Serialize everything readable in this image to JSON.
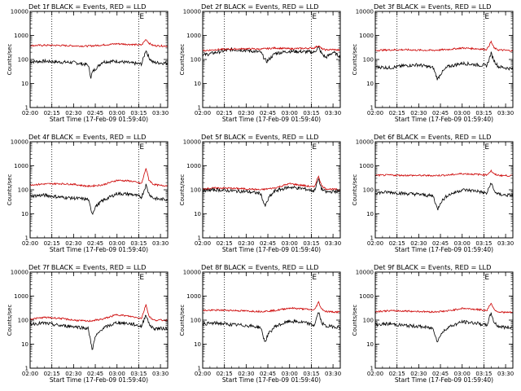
{
  "colors": {
    "events": "#000000",
    "lld": "#cc0000",
    "axis": "#000000"
  },
  "shared": {
    "xlabel": "Start Time (17-Feb-09 01:59:40)",
    "ylabel": "Counts/sec",
    "x_ticks": [
      "02:00",
      "02:15",
      "02:30",
      "02:45",
      "03:00",
      "03:15",
      "03:30"
    ],
    "y_ticks": [
      "1",
      "10",
      "100",
      "1000",
      "10000"
    ],
    "dotted_vlines": [
      "02:15",
      "03:15"
    ],
    "marker_label": "E"
  },
  "chart_data": [
    {
      "type": "line",
      "title": "Det 1f BLACK = Events, RED = LLD",
      "xlim": [
        "02:00",
        "03:35"
      ],
      "ylim": [
        1,
        10000
      ],
      "yscale": "log",
      "series": [
        {
          "name": "Events",
          "color": "#000000",
          "x": [
            "02:00",
            "02:10",
            "02:20",
            "02:30",
            "02:40",
            "02:42",
            "02:43",
            "02:45",
            "02:50",
            "03:00",
            "03:10",
            "03:17",
            "03:20",
            "03:22",
            "03:25",
            "03:30",
            "03:35"
          ],
          "y": [
            80,
            85,
            78,
            75,
            60,
            18,
            30,
            40,
            80,
            85,
            70,
            65,
            250,
            120,
            75,
            72,
            70
          ]
        },
        {
          "name": "LLD",
          "color": "#cc0000",
          "x": [
            "02:00",
            "02:10",
            "02:20",
            "02:30",
            "02:40",
            "02:50",
            "03:00",
            "03:10",
            "03:17",
            "03:20",
            "03:22",
            "03:25",
            "03:30",
            "03:35"
          ],
          "y": [
            380,
            390,
            385,
            370,
            360,
            400,
            450,
            420,
            400,
            700,
            480,
            380,
            370,
            360
          ]
        }
      ]
    },
    {
      "type": "line",
      "title": "Det 2f BLACK = Events, RED = LLD",
      "xlim": [
        "02:00",
        "03:35"
      ],
      "ylim": [
        1,
        10000
      ],
      "yscale": "log",
      "series": [
        {
          "name": "Events",
          "color": "#000000",
          "x": [
            "02:00",
            "02:10",
            "02:20",
            "02:30",
            "02:40",
            "02:44",
            "02:47",
            "02:50",
            "03:00",
            "03:10",
            "03:17",
            "03:20",
            "03:22",
            "03:25",
            "03:30",
            "03:35"
          ],
          "y": [
            150,
            200,
            260,
            240,
            200,
            80,
            120,
            180,
            220,
            210,
            200,
            320,
            180,
            120,
            200,
            130
          ]
        },
        {
          "name": "LLD",
          "color": "#cc0000",
          "x": [
            "02:00",
            "02:10",
            "02:20",
            "02:30",
            "02:40",
            "02:50",
            "03:00",
            "03:10",
            "03:17",
            "03:20",
            "03:22",
            "03:25",
            "03:30",
            "03:35"
          ],
          "y": [
            230,
            260,
            270,
            280,
            270,
            300,
            280,
            290,
            300,
            380,
            280,
            250,
            260,
            240
          ]
        }
      ]
    },
    {
      "type": "line",
      "title": "Det 3f BLACK = Events, RED = LLD",
      "xlim": [
        "02:00",
        "03:35"
      ],
      "ylim": [
        1,
        10000
      ],
      "yscale": "log",
      "series": [
        {
          "name": "Events",
          "color": "#000000",
          "x": [
            "02:00",
            "02:10",
            "02:20",
            "02:30",
            "02:40",
            "02:43",
            "02:45",
            "02:50",
            "03:00",
            "03:10",
            "03:17",
            "03:20",
            "03:22",
            "03:25",
            "03:30",
            "03:35"
          ],
          "y": [
            50,
            45,
            55,
            60,
            45,
            15,
            25,
            50,
            70,
            60,
            55,
            180,
            90,
            50,
            45,
            40
          ]
        },
        {
          "name": "LLD",
          "color": "#cc0000",
          "x": [
            "02:00",
            "02:10",
            "02:20",
            "02:30",
            "02:40",
            "02:50",
            "03:00",
            "03:10",
            "03:17",
            "03:20",
            "03:22",
            "03:25",
            "03:30",
            "03:35"
          ],
          "y": [
            240,
            250,
            255,
            245,
            240,
            260,
            300,
            280,
            260,
            550,
            300,
            250,
            240,
            230
          ]
        }
      ]
    },
    {
      "type": "line",
      "title": "Det 4f BLACK = Events, RED = LLD",
      "xlim": [
        "02:00",
        "03:35"
      ],
      "ylim": [
        1,
        10000
      ],
      "yscale": "log",
      "series": [
        {
          "name": "Events",
          "color": "#000000",
          "x": [
            "02:00",
            "02:10",
            "02:20",
            "02:30",
            "02:40",
            "02:43",
            "02:45",
            "02:50",
            "03:00",
            "03:10",
            "03:17",
            "03:20",
            "03:22",
            "03:25",
            "03:30",
            "03:35"
          ],
          "y": [
            55,
            60,
            50,
            45,
            40,
            10,
            20,
            35,
            70,
            65,
            50,
            160,
            70,
            45,
            40,
            40
          ]
        },
        {
          "name": "LLD",
          "color": "#cc0000",
          "x": [
            "02:00",
            "02:10",
            "02:20",
            "02:30",
            "02:40",
            "02:50",
            "03:00",
            "03:10",
            "03:17",
            "03:20",
            "03:22",
            "03:25",
            "03:30",
            "03:35"
          ],
          "y": [
            160,
            175,
            180,
            170,
            140,
            160,
            250,
            230,
            180,
            800,
            260,
            170,
            150,
            150
          ]
        }
      ]
    },
    {
      "type": "line",
      "title": "Det 5f BLACK = Events, RED = LLD",
      "xlim": [
        "02:00",
        "03:35"
      ],
      "ylim": [
        1,
        10000
      ],
      "yscale": "log",
      "series": [
        {
          "name": "Events",
          "color": "#000000",
          "x": [
            "02:00",
            "02:10",
            "02:20",
            "02:30",
            "02:40",
            "02:43",
            "02:46",
            "02:50",
            "03:00",
            "03:10",
            "03:17",
            "03:20",
            "03:22",
            "03:25",
            "03:30",
            "03:35"
          ],
          "y": [
            95,
            100,
            90,
            85,
            70,
            20,
            50,
            90,
            130,
            110,
            90,
            280,
            110,
            80,
            85,
            85
          ]
        },
        {
          "name": "LLD",
          "color": "#cc0000",
          "x": [
            "02:00",
            "02:10",
            "02:20",
            "02:30",
            "02:40",
            "02:50",
            "03:00",
            "03:10",
            "03:17",
            "03:20",
            "03:22",
            "03:25",
            "03:30",
            "03:35"
          ],
          "y": [
            110,
            120,
            115,
            110,
            100,
            120,
            180,
            150,
            130,
            380,
            150,
            110,
            105,
            100
          ]
        }
      ]
    },
    {
      "type": "line",
      "title": "Det 6f BLACK = Events, RED = LLD",
      "xlim": [
        "02:00",
        "03:35"
      ],
      "ylim": [
        1,
        10000
      ],
      "yscale": "log",
      "series": [
        {
          "name": "Events",
          "color": "#000000",
          "x": [
            "02:00",
            "02:10",
            "02:20",
            "02:30",
            "02:40",
            "02:43",
            "02:45",
            "02:50",
            "03:00",
            "03:10",
            "03:17",
            "03:20",
            "03:22",
            "03:25",
            "03:30",
            "03:35"
          ],
          "y": [
            75,
            80,
            70,
            65,
            55,
            15,
            30,
            60,
            100,
            90,
            70,
            200,
            90,
            65,
            60,
            60
          ]
        },
        {
          "name": "LLD",
          "color": "#cc0000",
          "x": [
            "02:00",
            "02:10",
            "02:20",
            "02:30",
            "02:40",
            "02:50",
            "03:00",
            "03:10",
            "03:17",
            "03:20",
            "03:22",
            "03:25",
            "03:30",
            "03:35"
          ],
          "y": [
            400,
            410,
            400,
            395,
            390,
            410,
            470,
            440,
            420,
            620,
            450,
            400,
            390,
            380
          ]
        }
      ]
    },
    {
      "type": "line",
      "title": "Det 7f BLACK = Events, RED = LLD",
      "xlim": [
        "02:00",
        "03:35"
      ],
      "ylim": [
        1,
        10000
      ],
      "yscale": "log",
      "series": [
        {
          "name": "Events",
          "color": "#000000",
          "x": [
            "02:00",
            "02:10",
            "02:20",
            "02:30",
            "02:40",
            "02:43",
            "02:45",
            "02:50",
            "03:00",
            "03:10",
            "03:17",
            "03:20",
            "03:22",
            "03:25",
            "03:30",
            "03:35"
          ],
          "y": [
            70,
            75,
            60,
            55,
            45,
            6,
            20,
            45,
            80,
            70,
            55,
            180,
            70,
            45,
            45,
            45
          ]
        },
        {
          "name": "LLD",
          "color": "#cc0000",
          "x": [
            "02:00",
            "02:10",
            "02:20",
            "02:30",
            "02:40",
            "02:50",
            "03:00",
            "03:10",
            "03:17",
            "03:20",
            "03:22",
            "03:25",
            "03:30",
            "03:35"
          ],
          "y": [
            110,
            130,
            120,
            100,
            90,
            110,
            170,
            140,
            120,
            450,
            150,
            100,
            100,
            100
          ]
        }
      ]
    },
    {
      "type": "line",
      "title": "Det 8f BLACK = Events, RED = LLD",
      "xlim": [
        "02:00",
        "03:35"
      ],
      "ylim": [
        1,
        10000
      ],
      "yscale": "log",
      "series": [
        {
          "name": "Events",
          "color": "#000000",
          "x": [
            "02:00",
            "02:10",
            "02:20",
            "02:30",
            "02:40",
            "02:43",
            "02:45",
            "02:50",
            "03:00",
            "03:10",
            "03:17",
            "03:20",
            "03:22",
            "03:25",
            "03:30",
            "03:35"
          ],
          "y": [
            70,
            75,
            65,
            60,
            50,
            12,
            25,
            55,
            90,
            80,
            60,
            220,
            80,
            55,
            55,
            50
          ]
        },
        {
          "name": "LLD",
          "color": "#cc0000",
          "x": [
            "02:00",
            "02:10",
            "02:20",
            "02:30",
            "02:40",
            "02:50",
            "03:00",
            "03:10",
            "03:17",
            "03:20",
            "03:22",
            "03:25",
            "03:30",
            "03:35"
          ],
          "y": [
            250,
            260,
            255,
            240,
            230,
            250,
            320,
            290,
            260,
            560,
            300,
            230,
            220,
            220
          ]
        }
      ]
    },
    {
      "type": "line",
      "title": "Det 9f BLACK = Events, RED = LLD",
      "xlim": [
        "02:00",
        "03:35"
      ],
      "ylim": [
        1,
        10000
      ],
      "yscale": "log",
      "series": [
        {
          "name": "Events",
          "color": "#000000",
          "x": [
            "02:00",
            "02:10",
            "02:20",
            "02:30",
            "02:40",
            "02:43",
            "02:45",
            "02:50",
            "03:00",
            "03:10",
            "03:17",
            "03:20",
            "03:22",
            "03:25",
            "03:30",
            "03:35"
          ],
          "y": [
            65,
            70,
            60,
            55,
            45,
            12,
            25,
            50,
            85,
            75,
            60,
            200,
            80,
            55,
            50,
            50
          ]
        },
        {
          "name": "LLD",
          "color": "#cc0000",
          "x": [
            "02:00",
            "02:10",
            "02:20",
            "02:30",
            "02:40",
            "02:50",
            "03:00",
            "03:10",
            "03:17",
            "03:20",
            "03:22",
            "03:25",
            "03:30",
            "03:35"
          ],
          "y": [
            230,
            245,
            240,
            230,
            220,
            240,
            310,
            280,
            250,
            520,
            280,
            220,
            210,
            210
          ]
        }
      ]
    }
  ]
}
